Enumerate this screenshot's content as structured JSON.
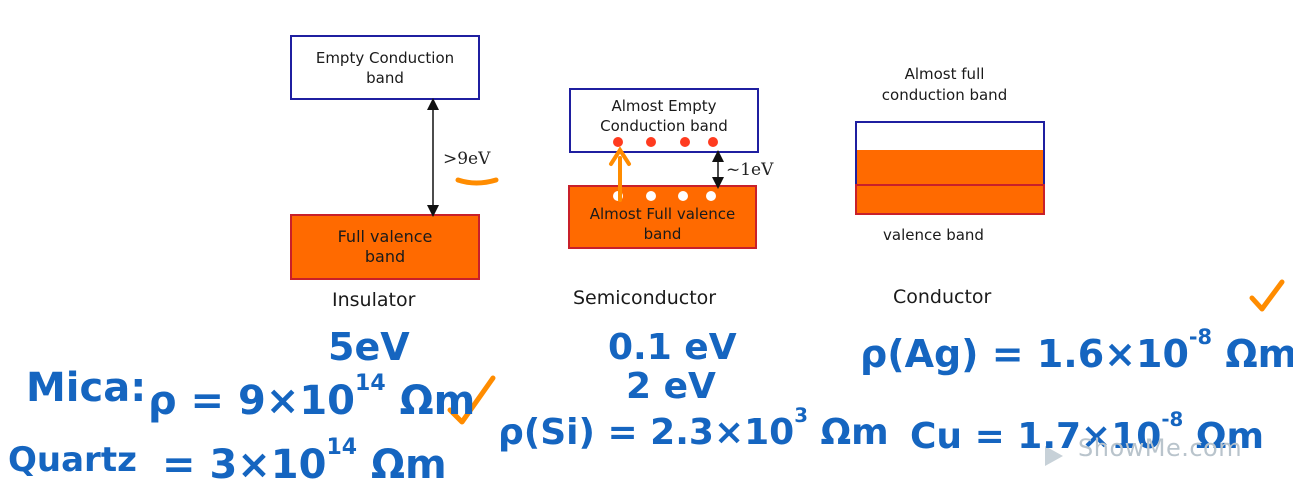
{
  "insulator": {
    "conduction_label": "Empty Conduction band",
    "valence_label": "Full valence band",
    "gap_label": ">9eV",
    "caption": "Insulator"
  },
  "semiconductor": {
    "conduction_label": "Almost Empty Conduction band",
    "valence_label": "Almost Full valence band",
    "gap_label": "~1eV",
    "caption": "Semiconductor"
  },
  "conductor": {
    "conduction_label": "Almost full conduction band",
    "valence_label": "valence band",
    "caption": "Conductor"
  },
  "handwriting": {
    "insulator_gap": "5eV",
    "mica_label": "Mica:",
    "mica_value": "ρ = 9×10",
    "mica_exp": "14",
    "mica_unit": "Ωm",
    "quartz_label": "Quartz",
    "quartz_value": "= 3×10",
    "quartz_exp": "14",
    "quartz_unit": "Ωm",
    "semi_gap_1": "0.1 eV",
    "semi_gap_2": "2 eV",
    "si_value": "ρ(Si) = 2.3×10",
    "si_exp": "3",
    "si_unit": "Ωm",
    "ag_value": "ρ(Ag) = 1.6×10",
    "ag_exp": "-8",
    "ag_unit": "Ωm",
    "cu_value": "Cu = 1.7×10",
    "cu_exp": "-8",
    "cu_unit": "Ωm"
  },
  "watermark": "ShowMe.com",
  "colors": {
    "valence_fill": "#ff6a00",
    "band_border": "#1f1fa0",
    "ink_blue": "#1565c0",
    "ink_orange": "#ff8c00",
    "electron": "#ff3b1f"
  }
}
